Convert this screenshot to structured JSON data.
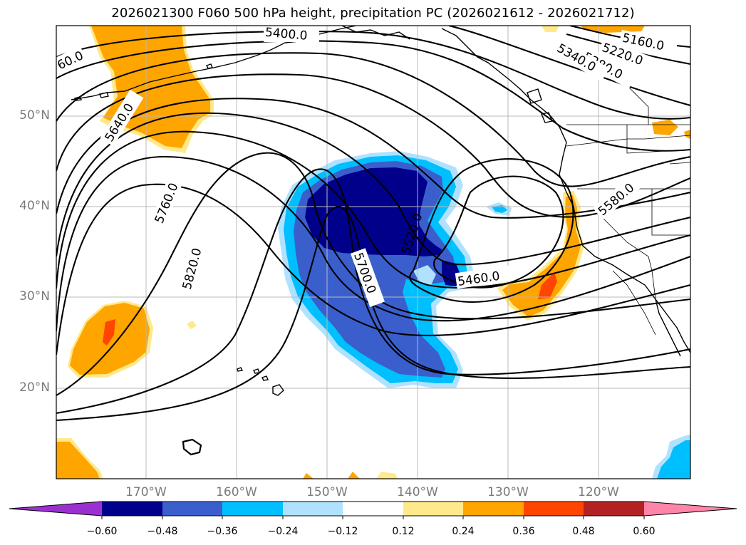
{
  "title": "2026021300 F060 500 hPa height, precipitation PC (2026021612 - 2026021712)",
  "lat_labels": [
    "50°N",
    "40°N",
    "30°N",
    "20°N"
  ],
  "lon_labels": [
    "170°W",
    "160°W",
    "150°W",
    "140°W",
    "130°W",
    "120°W"
  ],
  "contour_labels": {
    "c5160": "5160.0",
    "c5220": "5220.0",
    "c5280": "5280.0",
    "c5340": "5340.0",
    "c5400": "5400.0",
    "c5460": "5460.0",
    "c5520": "5520.0",
    "c5580": "5580.0",
    "c5640": "5640.0",
    "c5700": "5700.0",
    "c5760": "5760.0",
    "c5820": "5820.0",
    "c60": "60.0"
  },
  "colorbar": {
    "ticks": [
      "−0.60",
      "−0.48",
      "−0.36",
      "−0.24",
      "−0.12",
      "0.12",
      "0.24",
      "0.36",
      "0.48",
      "0.60"
    ],
    "colors": {
      "below": "#9b30d0",
      "b1": "#00008b",
      "b2": "#3a5fcd",
      "b3": "#00bfff",
      "b4": "#b0e2ff",
      "neutral": "#ffffff",
      "p1": "#ffe98a",
      "p2": "#ffa500",
      "p3": "#ff4500",
      "p4": "#b22222",
      "above": "#ff85a8"
    }
  }
}
